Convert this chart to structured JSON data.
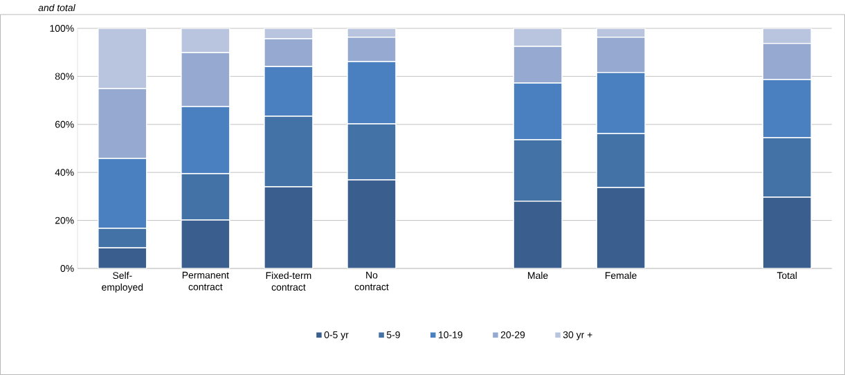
{
  "chart_data": {
    "type": "bar",
    "stacked": true,
    "title": "and total",
    "categories": [
      "Self-employed",
      "Permanent contract",
      "Fixed-term contract",
      "No contract",
      null,
      "Male",
      "Female",
      null,
      "Total"
    ],
    "series": [
      {
        "name": "0-5 yr",
        "color": "#3a5f8e",
        "values": [
          8.6,
          20.2,
          34.0,
          36.9,
          null,
          28.0,
          33.7,
          null,
          29.7
        ]
      },
      {
        "name": "5-9",
        "color": "#4272a6",
        "values": [
          8.1,
          19.3,
          29.4,
          23.3,
          null,
          25.6,
          22.5,
          null,
          24.8
        ]
      },
      {
        "name": "10-19",
        "color": "#4a80bf",
        "values": [
          29.1,
          27.9,
          20.7,
          26.0,
          null,
          23.6,
          25.4,
          null,
          24.2
        ]
      },
      {
        "name": "20-29",
        "color": "#95a9d1",
        "values": [
          29.1,
          22.5,
          11.6,
          10.1,
          null,
          15.3,
          14.7,
          null,
          15.0
        ]
      },
      {
        "name": "30 yr +",
        "color": "#b9c4df",
        "values": [
          25.1,
          10.1,
          4.3,
          3.7,
          null,
          7.5,
          3.7,
          null,
          6.3
        ]
      }
    ],
    "ylim": [
      0,
      100
    ],
    "yticks": [
      {
        "value": 0,
        "label": "0%"
      },
      {
        "value": 20,
        "label": "20%"
      },
      {
        "value": 40,
        "label": "40%"
      },
      {
        "value": 60,
        "label": "60%"
      },
      {
        "value": 80,
        "label": "80%"
      },
      {
        "value": 100,
        "label": "100%"
      }
    ],
    "grid": "y",
    "legend": "bottom"
  }
}
